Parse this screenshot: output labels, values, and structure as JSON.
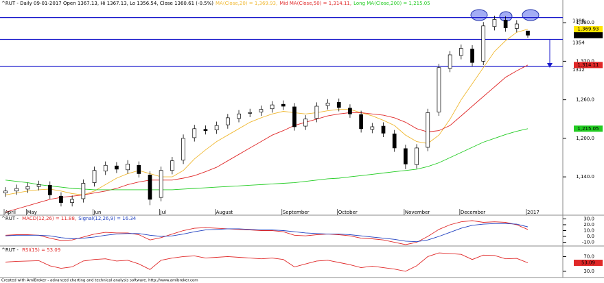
{
  "chart_data": [
    {
      "type": "candlestick",
      "title": "^RUT - Daily 09-01-2017 Open 1367.13, Hi 1367.13, Lo 1356.54, Close 1360.61 (-0.5%)",
      "categories": [
        "April",
        null,
        "May",
        null,
        null,
        null,
        null,
        null,
        "Jun",
        null,
        null,
        null,
        null,
        null,
        "Jul",
        null,
        null,
        null,
        null,
        "August",
        null,
        null,
        null,
        null,
        null,
        "September",
        null,
        null,
        null,
        null,
        "October",
        null,
        null,
        null,
        null,
        null,
        "November",
        null,
        null,
        null,
        null,
        "December",
        null,
        null,
        null,
        null,
        null,
        "2017"
      ],
      "open": [
        1115,
        1118,
        1121,
        1125,
        1127,
        1110,
        1100,
        1106,
        1131,
        1149,
        1157,
        1151,
        1158,
        1143,
        1108,
        1150,
        1166,
        1201,
        1214,
        1213,
        1221,
        1231,
        1239,
        1241,
        1246,
        1253,
        1249,
        1219,
        1231,
        1251,
        1256,
        1247,
        1237,
        1214,
        1219,
        1207,
        1184,
        1159,
        1186,
        1241,
        1309,
        1329,
        1339,
        1320,
        1374,
        1384,
        1371,
        1367.13
      ],
      "high": [
        1124,
        1128,
        1131,
        1134,
        1133,
        1116,
        1111,
        1136,
        1156,
        1164,
        1163,
        1166,
        1164,
        1149,
        1156,
        1171,
        1206,
        1221,
        1220,
        1226,
        1238,
        1244,
        1246,
        1251,
        1258,
        1259,
        1255,
        1236,
        1256,
        1261,
        1262,
        1253,
        1243,
        1224,
        1225,
        1213,
        1190,
        1191,
        1246,
        1316,
        1336,
        1346,
        1345,
        1381,
        1391,
        1390,
        1384,
        1367.13
      ],
      "low": [
        1109,
        1112,
        1115,
        1119,
        1106,
        1094,
        1094,
        1100,
        1125,
        1143,
        1146,
        1145,
        1139,
        1096,
        1102,
        1144,
        1160,
        1195,
        1206,
        1207,
        1215,
        1225,
        1233,
        1235,
        1240,
        1244,
        1212,
        1213,
        1225,
        1245,
        1242,
        1232,
        1209,
        1208,
        1202,
        1179,
        1152,
        1153,
        1180,
        1235,
        1303,
        1323,
        1312,
        1314,
        1368,
        1366,
        1365,
        1356.54
      ],
      "close": [
        1118,
        1122,
        1125,
        1128,
        1112,
        1100,
        1105,
        1130,
        1150,
        1158,
        1152,
        1160,
        1145,
        1105,
        1150,
        1165,
        1200,
        1215,
        1212,
        1220,
        1232,
        1238,
        1240,
        1245,
        1252,
        1250,
        1218,
        1230,
        1250,
        1255,
        1248,
        1238,
        1215,
        1218,
        1208,
        1185,
        1160,
        1185,
        1240,
        1310,
        1330,
        1340,
        1318,
        1375,
        1385,
        1372,
        1378,
        1360.61
      ],
      "close_label": "1,360.61",
      "color_up": "#ffffff",
      "color_down": "#000000",
      "ylim": [
        1090,
        1394
      ],
      "yticks": [
        {
          "value": 1140,
          "label": "1,140.0"
        },
        {
          "value": 1200,
          "label": "1,200.0"
        },
        {
          "value": 1260,
          "label": "1,260.0"
        },
        {
          "value": 1320,
          "label": "1,320.0"
        },
        {
          "value": 1380,
          "label": "1,380.0"
        }
      ],
      "hlines": [
        {
          "value": 1388,
          "label": "1388"
        },
        {
          "value": 1354,
          "label": "1354"
        },
        {
          "value": 1312,
          "label": "1312"
        }
      ],
      "hline_color": "#1a1acc",
      "series": [
        {
          "name": "MA(Close,20) = 1,369.93,",
          "color": "#f0b830",
          "last_label": "1,369.93",
          "label_bg": "#ffe600",
          "values": [
            1112,
            1115,
            1118,
            1120,
            1121,
            1118,
            1114,
            1112,
            1118,
            1128,
            1138,
            1145,
            1150,
            1145,
            1140,
            1140,
            1150,
            1168,
            1182,
            1195,
            1205,
            1215,
            1225,
            1232,
            1238,
            1242,
            1240,
            1238,
            1240,
            1243,
            1245,
            1245,
            1240,
            1235,
            1228,
            1220,
            1205,
            1195,
            1192,
            1205,
            1230,
            1260,
            1285,
            1310,
            1335,
            1352,
            1365,
            1369.93
          ]
        },
        {
          "name": "Mid MA(Close,50) = 1,314.11,",
          "color": "#e02828",
          "last_label": "1,314.11",
          "label_bg": "#e02828",
          "values": [
            1085,
            1090,
            1095,
            1100,
            1105,
            1108,
            1110,
            1112,
            1115,
            1118,
            1122,
            1128,
            1132,
            1135,
            1135,
            1135,
            1138,
            1142,
            1148,
            1155,
            1165,
            1175,
            1185,
            1195,
            1205,
            1212,
            1220,
            1225,
            1230,
            1235,
            1238,
            1240,
            1240,
            1238,
            1236,
            1232,
            1225,
            1215,
            1210,
            1212,
            1220,
            1235,
            1250,
            1265,
            1280,
            1295,
            1305,
            1314.11
          ]
        },
        {
          "name": "Long MA(Close,200) = 1,215.05",
          "color": "#22cc22",
          "last_label": "1,215.05",
          "label_bg": "#22cc22",
          "values": [
            1135,
            1133,
            1131,
            1128,
            1126,
            1124,
            1122,
            1121,
            1120,
            1120,
            1120,
            1120,
            1120,
            1120,
            1120,
            1120,
            1121,
            1122,
            1123,
            1124,
            1125,
            1126,
            1127,
            1128,
            1129,
            1130,
            1131,
            1133,
            1135,
            1137,
            1138,
            1140,
            1142,
            1144,
            1146,
            1148,
            1150,
            1152,
            1156,
            1162,
            1170,
            1178,
            1186,
            1194,
            1200,
            1206,
            1211,
            1215.05
          ]
        }
      ]
    },
    {
      "type": "line",
      "title": "^RUT - ",
      "ylim": [
        -14,
        34
      ],
      "yticks": [
        {
          "value": -10,
          "label": "-10.0"
        },
        {
          "value": 0,
          "label": "0.0"
        },
        {
          "value": 10,
          "label": "10.0"
        },
        {
          "value": 20,
          "label": "20.0"
        },
        {
          "value": 30,
          "label": "30.0"
        }
      ],
      "series": [
        {
          "name": "MACD(12,26) = 11.88,",
          "color": "#e02828",
          "values": [
            2,
            3,
            3,
            2,
            -3,
            -7,
            -6,
            -1,
            4,
            7,
            6,
            6,
            3,
            -6,
            -2,
            4,
            10,
            14,
            15,
            14,
            13,
            12,
            11,
            10,
            10,
            8,
            2,
            1,
            3,
            4,
            3,
            1,
            -3,
            -4,
            -6,
            -10,
            -14,
            -10,
            0,
            12,
            20,
            25,
            27,
            24,
            25,
            24,
            20,
            11.88
          ]
        },
        {
          "name": "Signal(12,26,9) = 16.34",
          "color": "#2040c0",
          "values": [
            1,
            2,
            2,
            2,
            1,
            -2,
            -4,
            -3,
            -1,
            2,
            4,
            5,
            5,
            2,
            0,
            1,
            4,
            8,
            11,
            12,
            13,
            13,
            12,
            11,
            11,
            10,
            8,
            6,
            5,
            4,
            4,
            3,
            1,
            -1,
            -3,
            -5,
            -8,
            -9,
            -6,
            0,
            7,
            14,
            19,
            21,
            22,
            22,
            21,
            16.34
          ]
        }
      ]
    },
    {
      "type": "line",
      "title": "^RUT - ",
      "ylim": [
        15,
        95
      ],
      "yticks": [
        {
          "value": 30,
          "label": "30.0"
        },
        {
          "value": 70,
          "label": "70.0"
        }
      ],
      "series": [
        {
          "name": "RSI(15) = 53.09",
          "color": "#e02828",
          "last_label": "53.09",
          "label_bg": "#e02828",
          "values": [
            55,
            57,
            58,
            59,
            45,
            38,
            42,
            58,
            62,
            64,
            58,
            60,
            50,
            35,
            60,
            66,
            70,
            72,
            66,
            68,
            70,
            68,
            66,
            64,
            66,
            62,
            42,
            50,
            58,
            60,
            54,
            48,
            40,
            44,
            40,
            36,
            30,
            45,
            70,
            80,
            78,
            76,
            62,
            74,
            73,
            64,
            65,
            53.09
          ]
        }
      ]
    }
  ],
  "footer": "Created with AmiBroker - advanced charting and technical analysis software. http://www.amibroker.com"
}
